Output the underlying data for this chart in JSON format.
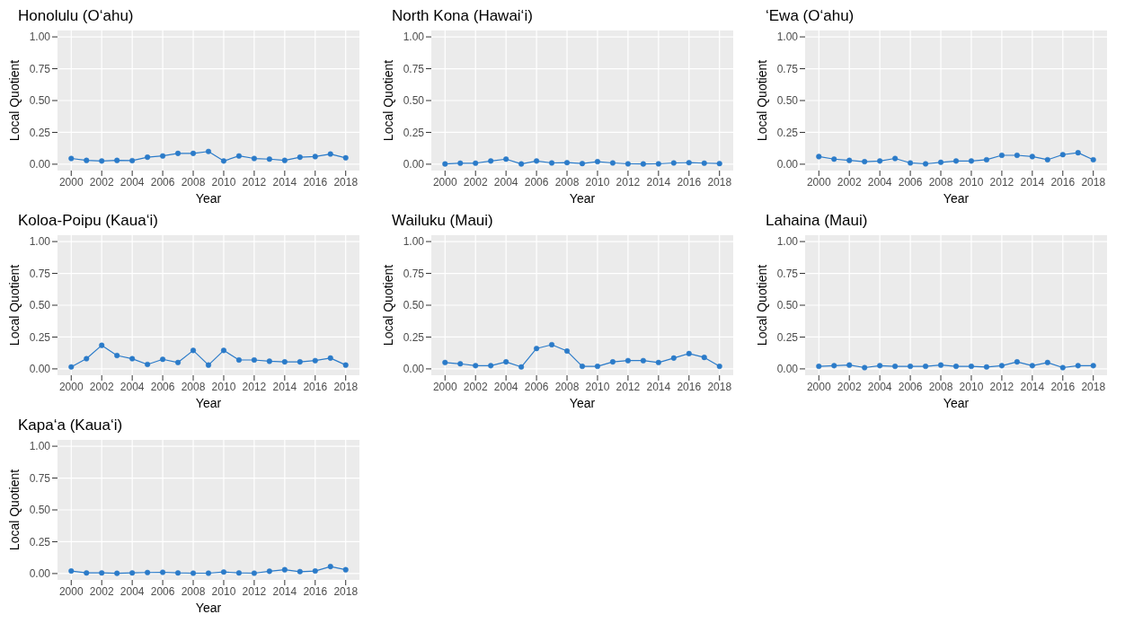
{
  "chart_data": [
    {
      "type": "line",
      "title": "Honolulu (O‘ahu)",
      "xlabel": "Year",
      "ylabel": "Local Quotient",
      "color": "#2b7bc9",
      "marker": "circle",
      "grid": true,
      "xlim": [
        1999.1,
        2018.9
      ],
      "xticks": [
        2000,
        2002,
        2004,
        2006,
        2008,
        2010,
        2012,
        2014,
        2016,
        2018
      ],
      "ylim": [
        -0.05,
        1.05
      ],
      "yticks": [
        {
          "value": 0,
          "label": "0.00"
        },
        {
          "value": 0.25,
          "label": "0.25"
        },
        {
          "value": 0.5,
          "label": "0.50"
        },
        {
          "value": 0.75,
          "label": "0.75"
        },
        {
          "value": 1,
          "label": "1.00"
        }
      ],
      "x": [
        2000,
        2001,
        2002,
        2003,
        2004,
        2005,
        2006,
        2007,
        2008,
        2009,
        2010,
        2011,
        2012,
        2013,
        2014,
        2015,
        2016,
        2017,
        2018
      ],
      "values": [
        0.045,
        0.03,
        0.025,
        0.03,
        0.028,
        0.055,
        0.065,
        0.085,
        0.085,
        0.1,
        0.025,
        0.065,
        0.045,
        0.04,
        0.03,
        0.055,
        0.06,
        0.08,
        0.05
      ]
    },
    {
      "type": "line",
      "title": "North Kona (Hawai‘i)",
      "xlabel": "Year",
      "ylabel": "Local Quotient",
      "color": "#2b7bc9",
      "marker": "circle",
      "grid": true,
      "xlim": [
        1999.1,
        2018.9
      ],
      "xticks": [
        2000,
        2002,
        2004,
        2006,
        2008,
        2010,
        2012,
        2014,
        2016,
        2018
      ],
      "ylim": [
        -0.05,
        1.05
      ],
      "yticks": [
        {
          "value": 0,
          "label": "0.00"
        },
        {
          "value": 0.25,
          "label": "0.25"
        },
        {
          "value": 0.5,
          "label": "0.50"
        },
        {
          "value": 0.75,
          "label": "0.75"
        },
        {
          "value": 1,
          "label": "1.00"
        }
      ],
      "x": [
        2000,
        2001,
        2002,
        2003,
        2004,
        2005,
        2006,
        2007,
        2008,
        2009,
        2010,
        2011,
        2012,
        2013,
        2014,
        2015,
        2016,
        2017,
        2018
      ],
      "values": [
        0.002,
        0.008,
        0.008,
        0.025,
        0.04,
        0.002,
        0.025,
        0.01,
        0.012,
        0.005,
        0.02,
        0.01,
        0.003,
        0.002,
        0.003,
        0.01,
        0.012,
        0.008,
        0.005
      ]
    },
    {
      "type": "line",
      "title": "‘Ewa (O‘ahu)",
      "xlabel": "Year",
      "ylabel": "Local Quotient",
      "color": "#2b7bc9",
      "marker": "circle",
      "grid": true,
      "xlim": [
        1999.1,
        2018.9
      ],
      "xticks": [
        2000,
        2002,
        2004,
        2006,
        2008,
        2010,
        2012,
        2014,
        2016,
        2018
      ],
      "ylim": [
        -0.05,
        1.05
      ],
      "yticks": [
        {
          "value": 0,
          "label": "0.00"
        },
        {
          "value": 0.25,
          "label": "0.25"
        },
        {
          "value": 0.5,
          "label": "0.50"
        },
        {
          "value": 0.75,
          "label": "0.75"
        },
        {
          "value": 1,
          "label": "1.00"
        }
      ],
      "x": [
        2000,
        2001,
        2002,
        2003,
        2004,
        2005,
        2006,
        2007,
        2008,
        2009,
        2010,
        2011,
        2012,
        2013,
        2014,
        2015,
        2016,
        2017,
        2018
      ],
      "values": [
        0.06,
        0.04,
        0.03,
        0.02,
        0.025,
        0.045,
        0.01,
        0.003,
        0.015,
        0.025,
        0.025,
        0.035,
        0.07,
        0.07,
        0.06,
        0.035,
        0.075,
        0.09,
        0.035
      ]
    },
    {
      "type": "line",
      "title": "Koloa-Poipu (Kaua‘i)",
      "xlabel": "Year",
      "ylabel": "Local Quotient",
      "color": "#2b7bc9",
      "marker": "circle",
      "grid": true,
      "xlim": [
        1999.1,
        2018.9
      ],
      "xticks": [
        2000,
        2002,
        2004,
        2006,
        2008,
        2010,
        2012,
        2014,
        2016,
        2018
      ],
      "ylim": [
        -0.05,
        1.05
      ],
      "yticks": [
        {
          "value": 0,
          "label": "0.00"
        },
        {
          "value": 0.25,
          "label": "0.25"
        },
        {
          "value": 0.5,
          "label": "0.50"
        },
        {
          "value": 0.75,
          "label": "0.75"
        },
        {
          "value": 1,
          "label": "1.00"
        }
      ],
      "x": [
        2000,
        2001,
        2002,
        2003,
        2004,
        2005,
        2006,
        2007,
        2008,
        2009,
        2010,
        2011,
        2012,
        2013,
        2014,
        2015,
        2016,
        2017,
        2018
      ],
      "values": [
        0.015,
        0.08,
        0.185,
        0.105,
        0.08,
        0.035,
        0.075,
        0.05,
        0.145,
        0.03,
        0.145,
        0.07,
        0.07,
        0.06,
        0.055,
        0.055,
        0.065,
        0.085,
        0.03
      ]
    },
    {
      "type": "line",
      "title": "Wailuku (Maui)",
      "xlabel": "Year",
      "ylabel": "Local Quotient",
      "color": "#2b7bc9",
      "marker": "circle",
      "grid": true,
      "xlim": [
        1999.1,
        2018.9
      ],
      "xticks": [
        2000,
        2002,
        2004,
        2006,
        2008,
        2010,
        2012,
        2014,
        2016,
        2018
      ],
      "ylim": [
        -0.05,
        1.05
      ],
      "yticks": [
        {
          "value": 0,
          "label": "0.00"
        },
        {
          "value": 0.25,
          "label": "0.25"
        },
        {
          "value": 0.5,
          "label": "0.50"
        },
        {
          "value": 0.75,
          "label": "0.75"
        },
        {
          "value": 1,
          "label": "1.00"
        }
      ],
      "x": [
        2000,
        2001,
        2002,
        2003,
        2004,
        2005,
        2006,
        2007,
        2008,
        2009,
        2010,
        2011,
        2012,
        2013,
        2014,
        2015,
        2016,
        2017,
        2018
      ],
      "values": [
        0.05,
        0.04,
        0.025,
        0.025,
        0.055,
        0.015,
        0.16,
        0.19,
        0.14,
        0.02,
        0.02,
        0.055,
        0.065,
        0.065,
        0.05,
        0.085,
        0.12,
        0.09,
        0.02
      ]
    },
    {
      "type": "line",
      "title": "Lahaina (Maui)",
      "xlabel": "Year",
      "ylabel": "Local Quotient",
      "color": "#2b7bc9",
      "marker": "circle",
      "grid": true,
      "xlim": [
        1999.1,
        2018.9
      ],
      "xticks": [
        2000,
        2002,
        2004,
        2006,
        2008,
        2010,
        2012,
        2014,
        2016,
        2018
      ],
      "ylim": [
        -0.05,
        1.05
      ],
      "yticks": [
        {
          "value": 0,
          "label": "0.00"
        },
        {
          "value": 0.25,
          "label": "0.25"
        },
        {
          "value": 0.5,
          "label": "0.50"
        },
        {
          "value": 0.75,
          "label": "0.75"
        },
        {
          "value": 1,
          "label": "1.00"
        }
      ],
      "x": [
        2000,
        2001,
        2002,
        2003,
        2004,
        2005,
        2006,
        2007,
        2008,
        2009,
        2010,
        2011,
        2012,
        2013,
        2014,
        2015,
        2016,
        2017,
        2018
      ],
      "values": [
        0.02,
        0.025,
        0.03,
        0.01,
        0.025,
        0.02,
        0.02,
        0.02,
        0.03,
        0.02,
        0.02,
        0.015,
        0.025,
        0.055,
        0.025,
        0.05,
        0.01,
        0.025,
        0.025
      ]
    },
    {
      "type": "line",
      "title": "Kapa‘a (Kaua‘i)",
      "xlabel": "Year",
      "ylabel": "Local Quotient",
      "color": "#2b7bc9",
      "marker": "circle",
      "grid": true,
      "xlim": [
        1999.1,
        2018.9
      ],
      "xticks": [
        2000,
        2002,
        2004,
        2006,
        2008,
        2010,
        2012,
        2014,
        2016,
        2018
      ],
      "ylim": [
        -0.05,
        1.05
      ],
      "yticks": [
        {
          "value": 0,
          "label": "0.00"
        },
        {
          "value": 0.25,
          "label": "0.25"
        },
        {
          "value": 0.5,
          "label": "0.50"
        },
        {
          "value": 0.75,
          "label": "0.75"
        },
        {
          "value": 1,
          "label": "1.00"
        }
      ],
      "x": [
        2000,
        2001,
        2002,
        2003,
        2004,
        2005,
        2006,
        2007,
        2008,
        2009,
        2010,
        2011,
        2012,
        2013,
        2014,
        2015,
        2016,
        2017,
        2018
      ],
      "values": [
        0.02,
        0.005,
        0.005,
        0.002,
        0.005,
        0.008,
        0.01,
        0.005,
        0.003,
        0.003,
        0.012,
        0.005,
        0.003,
        0.018,
        0.03,
        0.015,
        0.02,
        0.055,
        0.03
      ]
    }
  ]
}
